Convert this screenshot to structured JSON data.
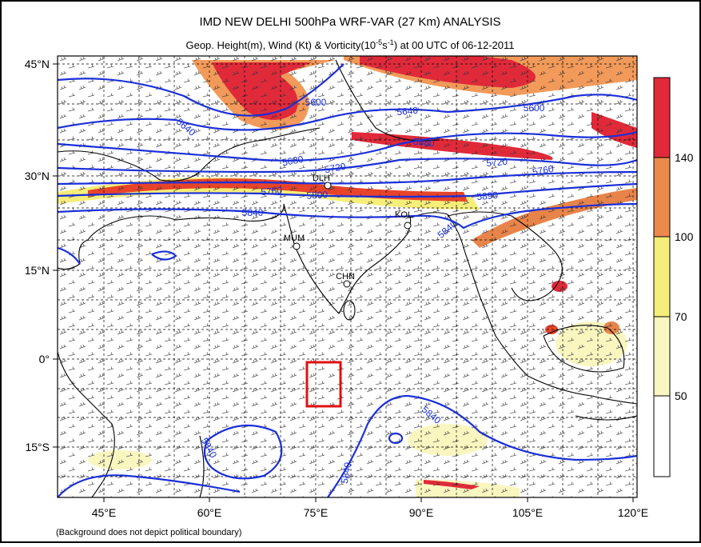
{
  "title": "IMD NEW DELHI 500hPa WRF-VAR (27 Km) ANALYSIS",
  "subtitle": {
    "parts": [
      "Geop. Height(m), Wind (Kt) & Vorticity(10",
      "-5",
      "s",
      "-1",
      ") at 00 UTC of 06-12-2011"
    ]
  },
  "latitude_labels": [
    "45°N",
    "30°N",
    "15°N",
    "0°",
    "15°S"
  ],
  "longitude_labels": [
    "45°E",
    "60°E",
    "75°E",
    "90°E",
    "105°E",
    "120°E"
  ],
  "colorbar_labels": [
    "140",
    "100",
    "70",
    "50"
  ],
  "contour_labels": [
    "5600",
    "5600",
    "5640",
    "5640",
    "5680",
    "5680",
    "5720",
    "5720",
    "5760",
    "5760",
    "5800",
    "5890",
    "5840",
    "5840",
    "5840",
    "5840",
    "5840"
  ],
  "station_labels": [
    "DLH",
    "KOL",
    "MUM",
    "CHN"
  ],
  "footnote": "(Background does not depict political boundary)"
}
